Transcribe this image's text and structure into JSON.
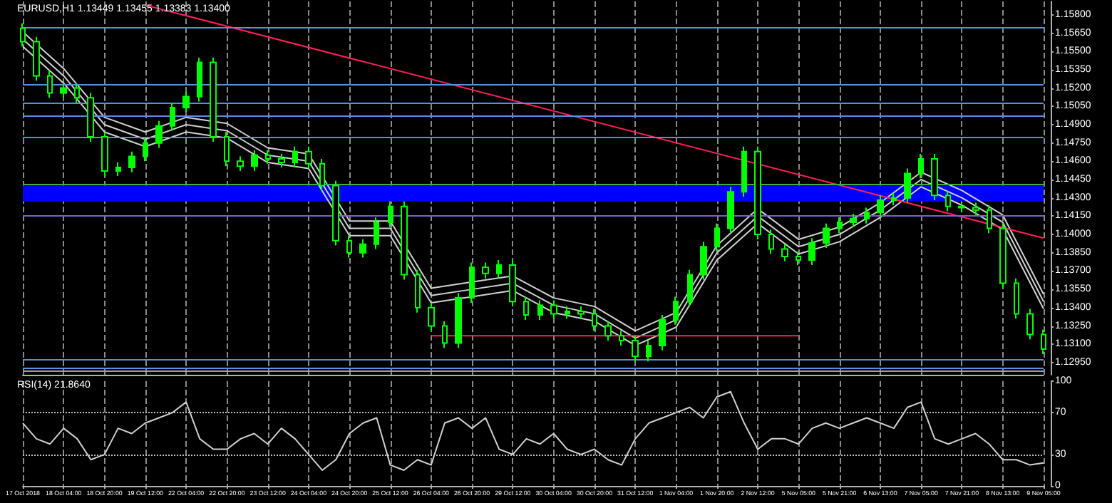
{
  "chart_data": [
    {
      "type": "candlestick",
      "title": "EURUSD,H1 1.13449 1.13455 1.13383 1.13400",
      "color": "#00ff00",
      "tick_labels": "y",
      "grid": "x",
      "categories": [
        "17 Oct 2018",
        null,
        null,
        "18 Oct 04:00",
        null,
        null,
        "18 Oct 20:00",
        null,
        null,
        "19 Oct 12:00",
        null,
        null,
        "22 Oct 04:00",
        null,
        null,
        "22 Oct 20:00",
        null,
        null,
        "23 Oct 12:00",
        null,
        null,
        "24 Oct 04:00",
        null,
        null,
        "24 Oct 20:00",
        null,
        null,
        "25 Oct 12:00",
        null,
        null,
        "26 Oct 04:00",
        null,
        null,
        "26 Oct 20:00",
        null,
        null,
        "29 Oct 12:00",
        null,
        null,
        "30 Oct 04:00",
        null,
        null,
        "30 Oct 20:00",
        null,
        null,
        "31 Oct 12:00",
        null,
        null,
        "1 Nov 04:00",
        null,
        null,
        "1 Nov 20:00",
        null,
        null,
        "2 Nov 12:00",
        null,
        null,
        "5 Nov 05:00",
        null,
        null,
        "5 Nov 21:00",
        null,
        null,
        "6 Nov 13:00",
        null,
        null,
        "7 Nov 05:00",
        null,
        null,
        "7 Nov 21:00",
        null,
        null,
        "8 Nov 13:00",
        null,
        null,
        "9 Nov 05:00"
      ],
      "ohlc": [
        [
          1.1569,
          1.1573,
          1.1554,
          1.1558
        ],
        [
          1.1558,
          1.1562,
          1.1526,
          1.153
        ],
        [
          1.153,
          1.1534,
          1.1512,
          1.1516
        ],
        [
          1.1516,
          1.1524,
          1.1512,
          1.152
        ],
        [
          1.152,
          1.1524,
          1.1508,
          1.1512
        ],
        [
          1.1512,
          1.1516,
          1.1476,
          1.148
        ],
        [
          1.148,
          1.1484,
          1.1448,
          1.1452
        ],
        [
          1.1452,
          1.1459,
          1.1448,
          1.1455
        ],
        [
          1.1455,
          1.1468,
          1.1451,
          1.1464
        ],
        [
          1.1464,
          1.1479,
          1.146,
          1.1475
        ],
        [
          1.1475,
          1.1493,
          1.1471,
          1.1489
        ],
        [
          1.1489,
          1.1508,
          1.1485,
          1.1504
        ],
        [
          1.1504,
          1.1517,
          1.15,
          1.1513
        ],
        [
          1.1513,
          1.1545,
          1.1509,
          1.1541
        ],
        [
          1.1541,
          1.1545,
          1.1476,
          1.148
        ],
        [
          1.148,
          1.1484,
          1.1456,
          1.146
        ],
        [
          1.146,
          1.1464,
          1.1452,
          1.1456
        ],
        [
          1.1456,
          1.1469,
          1.1452,
          1.1465
        ],
        [
          1.1465,
          1.1469,
          1.1458,
          1.1462
        ],
        [
          1.1462,
          1.1466,
          1.1455,
          1.1459
        ],
        [
          1.1459,
          1.1472,
          1.1455,
          1.1468
        ],
        [
          1.1468,
          1.1472,
          1.1454,
          1.1458
        ],
        [
          1.1458,
          1.1462,
          1.1436,
          1.144
        ],
        [
          1.144,
          1.1444,
          1.1391,
          1.1395
        ],
        [
          1.1395,
          1.1399,
          1.1381,
          1.1385
        ],
        [
          1.1385,
          1.1396,
          1.1381,
          1.1392
        ],
        [
          1.1392,
          1.1414,
          1.1388,
          1.141
        ],
        [
          1.141,
          1.1427,
          1.1406,
          1.1423
        ],
        [
          1.1423,
          1.1427,
          1.1363,
          1.1367
        ],
        [
          1.1367,
          1.1371,
          1.1336,
          1.134
        ],
        [
          1.134,
          1.1344,
          1.1321,
          1.1325
        ],
        [
          1.1325,
          1.1329,
          1.1307,
          1.1311
        ],
        [
          1.1311,
          1.1352,
          1.1307,
          1.1348
        ],
        [
          1.1348,
          1.1377,
          1.1344,
          1.1373
        ],
        [
          1.1373,
          1.1377,
          1.1364,
          1.1368
        ],
        [
          1.1368,
          1.1379,
          1.1364,
          1.1375
        ],
        [
          1.1375,
          1.1379,
          1.1341,
          1.1345
        ],
        [
          1.1345,
          1.1349,
          1.133,
          1.1334
        ],
        [
          1.1334,
          1.1346,
          1.133,
          1.1342
        ],
        [
          1.1342,
          1.1346,
          1.1331,
          1.1335
        ],
        [
          1.1335,
          1.1341,
          1.1331,
          1.1337
        ],
        [
          1.1337,
          1.1341,
          1.1331,
          1.1335
        ],
        [
          1.1335,
          1.1339,
          1.1321,
          1.1325
        ],
        [
          1.1325,
          1.1329,
          1.1313,
          1.1317
        ],
        [
          1.1317,
          1.1321,
          1.1309,
          1.1313
        ],
        [
          1.1313,
          1.1317,
          1.1296,
          1.13
        ],
        [
          1.13,
          1.1313,
          1.1296,
          1.1309
        ],
        [
          1.1309,
          1.1334,
          1.1305,
          1.133
        ],
        [
          1.133,
          1.1349,
          1.1326,
          1.1345
        ],
        [
          1.1345,
          1.1371,
          1.1341,
          1.1367
        ],
        [
          1.1367,
          1.1394,
          1.1363,
          1.139
        ],
        [
          1.139,
          1.1409,
          1.1386,
          1.1405
        ],
        [
          1.1405,
          1.1439,
          1.1401,
          1.1435
        ],
        [
          1.1435,
          1.1472,
          1.1431,
          1.1468
        ],
        [
          1.1468,
          1.1472,
          1.1396,
          1.14
        ],
        [
          1.14,
          1.1404,
          1.1384,
          1.1388
        ],
        [
          1.1388,
          1.1392,
          1.1378,
          1.1382
        ],
        [
          1.1382,
          1.1386,
          1.1375,
          1.1379
        ],
        [
          1.1379,
          1.1397,
          1.1375,
          1.1393
        ],
        [
          1.1393,
          1.1409,
          1.1389,
          1.1405
        ],
        [
          1.1405,
          1.1414,
          1.1401,
          1.141
        ],
        [
          1.141,
          1.1417,
          1.1406,
          1.1413
        ],
        [
          1.1413,
          1.1422,
          1.1409,
          1.1418
        ],
        [
          1.1418,
          1.1432,
          1.1414,
          1.1428
        ],
        [
          1.1428,
          1.1434,
          1.1424,
          1.143
        ],
        [
          1.143,
          1.1454,
          1.1426,
          1.145
        ],
        [
          1.145,
          1.1466,
          1.1446,
          1.1462
        ],
        [
          1.1462,
          1.1466,
          1.1428,
          1.1432
        ],
        [
          1.1432,
          1.1436,
          1.1419,
          1.1423
        ],
        [
          1.1423,
          1.1427,
          1.1418,
          1.1422
        ],
        [
          1.1422,
          1.1426,
          1.1416,
          1.142
        ],
        [
          1.142,
          1.1424,
          1.1401,
          1.1405
        ],
        [
          1.1405,
          1.1409,
          1.1356,
          1.136
        ],
        [
          1.136,
          1.1364,
          1.1331,
          1.1335
        ],
        [
          1.1335,
          1.1339,
          1.1314,
          1.1318
        ],
        [
          1.1318,
          1.1322,
          1.1302,
          1.1306
        ]
      ],
      "series": [
        {
          "type": "line",
          "color": "#d0d0d0",
          "x": [
            "17 Oct 2018",
            "18 Oct 04:00",
            "18 Oct 20:00",
            "19 Oct 12:00",
            "22 Oct 04:00",
            "22 Oct 20:00",
            "23 Oct 12:00",
            "24 Oct 04:00",
            "24 Oct 20:00",
            "25 Oct 12:00",
            "26 Oct 04:00",
            "26 Oct 20:00",
            "29 Oct 12:00",
            "30 Oct 04:00",
            "30 Oct 20:00",
            "31 Oct 12:00",
            "1 Nov 04:00",
            "1 Nov 20:00",
            "2 Nov 12:00",
            "5 Nov 05:00",
            "5 Nov 21:00",
            "6 Nov 13:00",
            "7 Nov 05:00",
            "7 Nov 21:00",
            "8 Nov 13:00",
            "9 Nov 05:00"
          ],
          "values": [
            1.1566,
            1.1536,
            1.1496,
            1.1484,
            1.1496,
            1.1491,
            1.1471,
            1.1466,
            1.1411,
            1.1411,
            1.1356,
            1.1361,
            1.1366,
            1.1348,
            1.1341,
            1.1321,
            1.1336,
            1.1391,
            1.1421,
            1.1396,
            1.1406,
            1.1426,
            1.1451,
            1.1436,
            1.1416,
            1.1351
          ]
        },
        {
          "type": "line",
          "color": "#d0d0d0",
          "x": [
            "17 Oct 2018",
            "18 Oct 04:00",
            "18 Oct 20:00",
            "19 Oct 12:00",
            "22 Oct 04:00",
            "22 Oct 20:00",
            "23 Oct 12:00",
            "24 Oct 04:00",
            "24 Oct 20:00",
            "25 Oct 12:00",
            "26 Oct 04:00",
            "26 Oct 20:00",
            "29 Oct 12:00",
            "30 Oct 04:00",
            "30 Oct 20:00",
            "31 Oct 12:00",
            "1 Nov 04:00",
            "1 Nov 20:00",
            "2 Nov 12:00",
            "5 Nov 05:00",
            "5 Nov 21:00",
            "6 Nov 13:00",
            "7 Nov 05:00",
            "7 Nov 21:00",
            "8 Nov 13:00",
            "9 Nov 05:00"
          ],
          "values": [
            1.156,
            1.153,
            1.149,
            1.1478,
            1.149,
            1.1485,
            1.1465,
            1.146,
            1.1405,
            1.1405,
            1.135,
            1.1355,
            1.136,
            1.1342,
            1.1335,
            1.1315,
            1.133,
            1.1385,
            1.1415,
            1.139,
            1.14,
            1.142,
            1.1445,
            1.143,
            1.141,
            1.1345
          ]
        },
        {
          "type": "line",
          "color": "#d0d0d0",
          "x": [
            "17 Oct 2018",
            "18 Oct 04:00",
            "18 Oct 20:00",
            "19 Oct 12:00",
            "22 Oct 04:00",
            "22 Oct 20:00",
            "23 Oct 12:00",
            "24 Oct 04:00",
            "24 Oct 20:00",
            "25 Oct 12:00",
            "26 Oct 04:00",
            "26 Oct 20:00",
            "29 Oct 12:00",
            "30 Oct 04:00",
            "30 Oct 20:00",
            "31 Oct 12:00",
            "1 Nov 04:00",
            "1 Nov 20:00",
            "2 Nov 12:00",
            "5 Nov 05:00",
            "5 Nov 21:00",
            "6 Nov 13:00",
            "7 Nov 05:00",
            "7 Nov 21:00",
            "8 Nov 13:00",
            "9 Nov 05:00"
          ],
          "values": [
            1.1554,
            1.1524,
            1.1484,
            1.1472,
            1.1484,
            1.1479,
            1.1459,
            1.1454,
            1.1399,
            1.1399,
            1.1344,
            1.1349,
            1.1354,
            1.1336,
            1.1329,
            1.1309,
            1.1324,
            1.1379,
            1.1409,
            1.1384,
            1.1394,
            1.1414,
            1.1439,
            1.1424,
            1.1404,
            1.1339
          ]
        },
        {
          "type": "line",
          "color": "#ff1f5a",
          "x": [
            "19 Oct 12:00",
            "9 Nov 05:00"
          ],
          "values": [
            1.1588,
            1.1397
          ]
        },
        {
          "type": "line",
          "color": "#ff1f5a",
          "x": [
            "26 Oct 04:00",
            "5 Nov 05:00"
          ],
          "values": [
            1.1317,
            1.1317
          ]
        }
      ],
      "ref_lines": [
        {
          "axis": "y",
          "value": 1.157,
          "color": "#5b8de0"
        },
        {
          "axis": "y",
          "value": 1.1523,
          "color": "#5b8de0"
        },
        {
          "axis": "y",
          "value": 1.1508,
          "color": "#5b8de0"
        },
        {
          "axis": "y",
          "value": 1.1497,
          "color": "#5b8de0"
        },
        {
          "axis": "y",
          "value": 1.148,
          "color": "#5b8de0"
        },
        {
          "axis": "y",
          "value": 1.1441,
          "color": "#3cb043"
        },
        {
          "axis": "y",
          "value": 1.1416,
          "color": "#7b5cd6"
        },
        {
          "axis": "y",
          "value": 1.1297,
          "color": "#5b8de0"
        },
        {
          "axis": "y",
          "value": 1.1291,
          "color": "#5b8de0"
        },
        {
          "axis": "y",
          "value": 1.1288,
          "color": "#a0a0a0"
        }
      ],
      "bands": [
        {
          "axis": "y",
          "from": 1.1427,
          "to": 1.144,
          "color": "#0000ff"
        }
      ],
      "ylim": [
        1.1285,
        1.1591
      ],
      "yticks": [
        {
          "value": 1.158,
          "label": "1.15800"
        },
        {
          "value": 1.1565,
          "label": "1.15650"
        },
        {
          "value": 1.155,
          "label": "1.15500"
        },
        {
          "value": 1.1535,
          "label": "1.15350"
        },
        {
          "value": 1.152,
          "label": "1.15200"
        },
        {
          "value": 1.1505,
          "label": "1.15050"
        },
        {
          "value": 1.149,
          "label": "1.14900"
        },
        {
          "value": 1.1475,
          "label": "1.14750"
        },
        {
          "value": 1.146,
          "label": "1.14600"
        },
        {
          "value": 1.1445,
          "label": "1.14450"
        },
        {
          "value": 1.143,
          "label": "1.14300"
        },
        {
          "value": 1.1415,
          "label": "1.14150"
        },
        {
          "value": 1.14,
          "label": "1.14000"
        },
        {
          "value": 1.1385,
          "label": "1.13850"
        },
        {
          "value": 1.137,
          "label": "1.13700"
        },
        {
          "value": 1.1355,
          "label": "1.13550"
        },
        {
          "value": 1.134,
          "label": "1.13400"
        },
        {
          "value": 1.1325,
          "label": "1.13250"
        },
        {
          "value": 1.131,
          "label": "1.13100"
        },
        {
          "value": 1.1295,
          "label": "1.12950"
        }
      ]
    },
    {
      "type": "line",
      "title": "RSI(14) 21.8640",
      "color": "#d0d0d0",
      "grid": "x",
      "categories": [
        "17 Oct 2018",
        null,
        null,
        "18 Oct 04:00",
        null,
        null,
        "18 Oct 20:00",
        null,
        null,
        "19 Oct 12:00",
        null,
        null,
        "22 Oct 04:00",
        null,
        null,
        "22 Oct 20:00",
        null,
        null,
        "23 Oct 12:00",
        null,
        null,
        "24 Oct 04:00",
        null,
        null,
        "24 Oct 20:00",
        null,
        null,
        "25 Oct 12:00",
        null,
        null,
        "26 Oct 04:00",
        null,
        null,
        "26 Oct 20:00",
        null,
        null,
        "29 Oct 12:00",
        null,
        null,
        "30 Oct 04:00",
        null,
        null,
        "30 Oct 20:00",
        null,
        null,
        "31 Oct 12:00",
        null,
        null,
        "1 Nov 04:00",
        null,
        null,
        "1 Nov 20:00",
        null,
        null,
        "2 Nov 12:00",
        null,
        null,
        "5 Nov 05:00",
        null,
        null,
        "5 Nov 21:00",
        null,
        null,
        "6 Nov 13:00",
        null,
        null,
        "7 Nov 05:00",
        null,
        null,
        "7 Nov 21:00",
        null,
        null,
        "8 Nov 13:00",
        null,
        null,
        "9 Nov 05:00"
      ],
      "values": [
        60,
        45,
        40,
        55,
        45,
        25,
        30,
        55,
        50,
        60,
        65,
        70,
        80,
        45,
        35,
        35,
        45,
        50,
        40,
        55,
        45,
        30,
        15,
        25,
        50,
        60,
        65,
        20,
        15,
        25,
        20,
        60,
        65,
        55,
        65,
        35,
        30,
        45,
        40,
        50,
        35,
        30,
        35,
        25,
        20,
        45,
        60,
        65,
        70,
        75,
        65,
        85,
        90,
        60,
        35,
        45,
        45,
        40,
        55,
        60,
        55,
        60,
        65,
        60,
        55,
        75,
        80,
        45,
        40,
        45,
        50,
        40,
        25,
        25,
        20,
        22
      ],
      "ref_lines": [
        {
          "axis": "y",
          "value": 70,
          "color": "#c0c0c0",
          "line_style": "dotted"
        },
        {
          "axis": "y",
          "value": 30,
          "color": "#c0c0c0",
          "line_style": "dotted"
        }
      ],
      "ylim": [
        0,
        100
      ],
      "yticks": [
        0,
        30,
        70,
        100
      ]
    }
  ]
}
